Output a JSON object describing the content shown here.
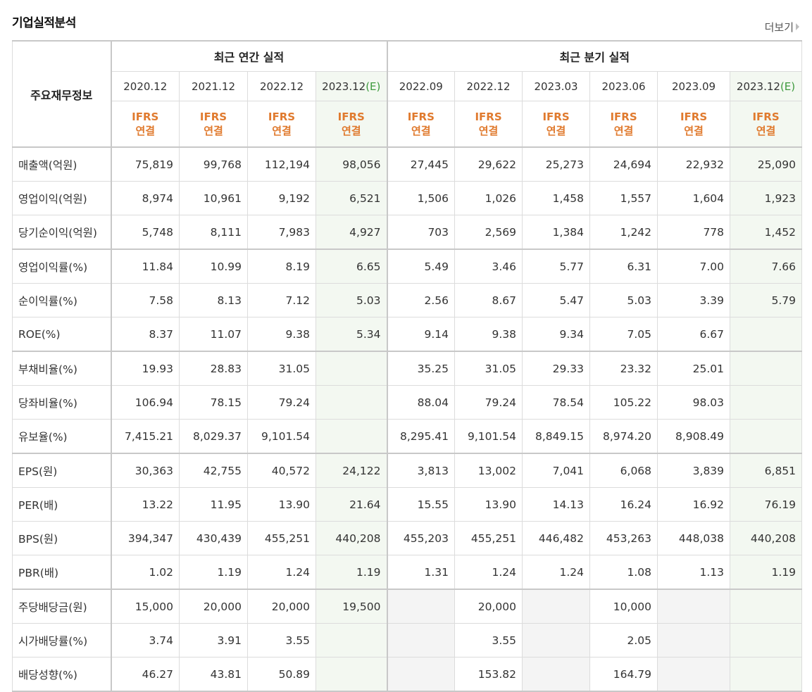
{
  "header": {
    "title": "기업실적분석",
    "more_label": "더보기"
  },
  "table": {
    "corner_label": "주요재무정보",
    "group_annual": "최근 연간 실적",
    "group_quarter": "최근 분기 실적",
    "periods": [
      {
        "label": "2020.12",
        "est": ""
      },
      {
        "label": "2021.12",
        "est": ""
      },
      {
        "label": "2022.12",
        "est": ""
      },
      {
        "label": "2023.12",
        "est": "(E)"
      },
      {
        "label": "2022.09",
        "est": ""
      },
      {
        "label": "2022.12",
        "est": ""
      },
      {
        "label": "2023.03",
        "est": ""
      },
      {
        "label": "2023.06",
        "est": ""
      },
      {
        "label": "2023.09",
        "est": ""
      },
      {
        "label": "2023.12",
        "est": "(E)"
      }
    ],
    "basis_line1": "IFRS",
    "basis_line2": "연결",
    "rows": [
      {
        "label": "매출액(억원)",
        "values": [
          "75,819",
          "99,768",
          "112,194",
          "98,056",
          "27,445",
          "29,622",
          "25,273",
          "24,694",
          "22,932",
          "25,090"
        ]
      },
      {
        "label": "영업이익(억원)",
        "values": [
          "8,974",
          "10,961",
          "9,192",
          "6,521",
          "1,506",
          "1,026",
          "1,458",
          "1,557",
          "1,604",
          "1,923"
        ]
      },
      {
        "label": "당기순이익(억원)",
        "values": [
          "5,748",
          "8,111",
          "7,983",
          "4,927",
          "703",
          "2,569",
          "1,384",
          "1,242",
          "778",
          "1,452"
        ]
      },
      {
        "label": "영업이익률(%)",
        "values": [
          "11.84",
          "10.99",
          "8.19",
          "6.65",
          "5.49",
          "3.46",
          "5.77",
          "6.31",
          "7.00",
          "7.66"
        ]
      },
      {
        "label": "순이익률(%)",
        "values": [
          "7.58",
          "8.13",
          "7.12",
          "5.03",
          "2.56",
          "8.67",
          "5.47",
          "5.03",
          "3.39",
          "5.79"
        ]
      },
      {
        "label": "ROE(%)",
        "values": [
          "8.37",
          "11.07",
          "9.38",
          "5.34",
          "9.14",
          "9.38",
          "9.34",
          "7.05",
          "6.67",
          ""
        ]
      },
      {
        "label": "부채비율(%)",
        "values": [
          "19.93",
          "28.83",
          "31.05",
          "",
          "35.25",
          "31.05",
          "29.33",
          "23.32",
          "25.01",
          ""
        ]
      },
      {
        "label": "당좌비율(%)",
        "values": [
          "106.94",
          "78.15",
          "79.24",
          "",
          "88.04",
          "79.24",
          "78.54",
          "105.22",
          "98.03",
          ""
        ]
      },
      {
        "label": "유보율(%)",
        "values": [
          "7,415.21",
          "8,029.37",
          "9,101.54",
          "",
          "8,295.41",
          "9,101.54",
          "8,849.15",
          "8,974.20",
          "8,908.49",
          ""
        ]
      },
      {
        "label": "EPS(원)",
        "values": [
          "30,363",
          "42,755",
          "40,572",
          "24,122",
          "3,813",
          "13,002",
          "7,041",
          "6,068",
          "3,839",
          "6,851"
        ]
      },
      {
        "label": "PER(배)",
        "values": [
          "13.22",
          "11.95",
          "13.90",
          "21.64",
          "15.55",
          "13.90",
          "14.13",
          "16.24",
          "16.92",
          "76.19"
        ]
      },
      {
        "label": "BPS(원)",
        "values": [
          "394,347",
          "430,439",
          "455,251",
          "440,208",
          "455,203",
          "455,251",
          "446,482",
          "453,263",
          "448,038",
          "440,208"
        ]
      },
      {
        "label": "PBR(배)",
        "values": [
          "1.02",
          "1.19",
          "1.24",
          "1.19",
          "1.31",
          "1.24",
          "1.24",
          "1.08",
          "1.13",
          "1.19"
        ]
      },
      {
        "label": "주당배당금(원)",
        "values": [
          "15,000",
          "20,000",
          "20,000",
          "19,500",
          "",
          "20,000",
          "",
          "10,000",
          "",
          ""
        ]
      },
      {
        "label": "시가배당률(%)",
        "values": [
          "3.74",
          "3.91",
          "3.55",
          "",
          "",
          "3.55",
          "",
          "2.05",
          "",
          ""
        ]
      },
      {
        "label": "배당성향(%)",
        "values": [
          "46.27",
          "43.81",
          "50.89",
          "",
          "",
          "153.82",
          "",
          "164.79",
          "",
          ""
        ]
      }
    ]
  },
  "colors": {
    "ifrs_orange": "#e07a2e",
    "estimate_green": "#3e9a3e",
    "estimate_bg": "#f3f8f1"
  }
}
